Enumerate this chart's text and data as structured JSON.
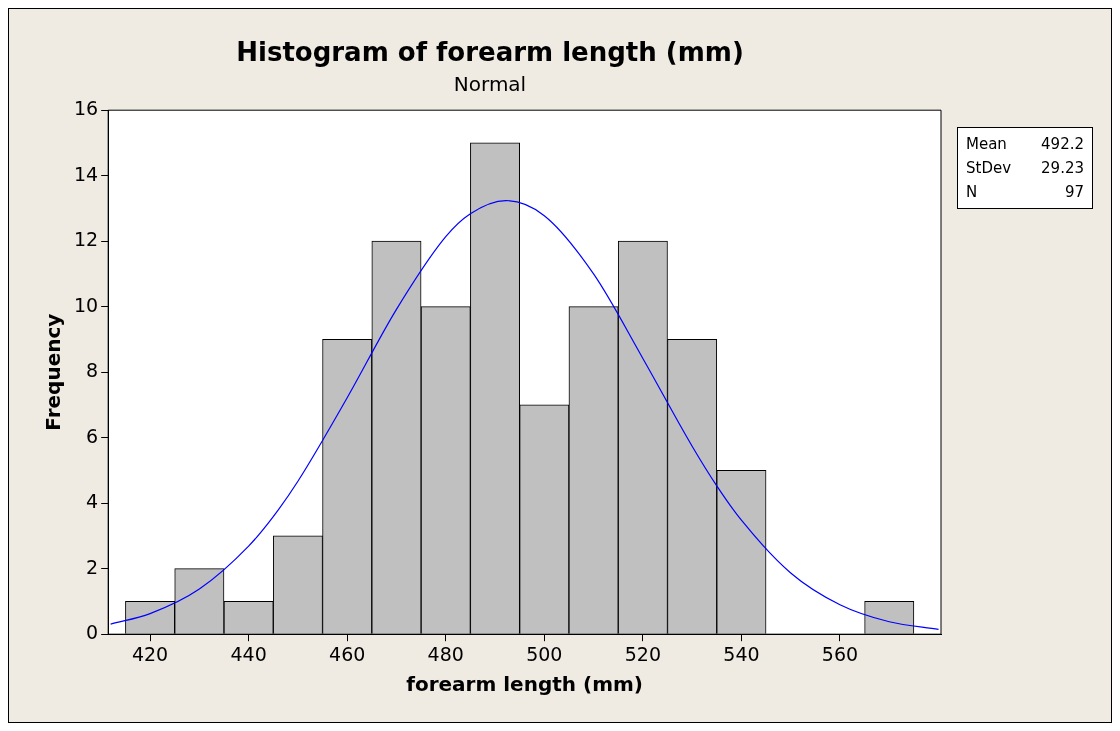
{
  "chart_data": {
    "type": "histogram",
    "title": "Histogram of forearm length (mm)",
    "subtitle": "Normal",
    "xlabel": "forearm length (mm)",
    "ylabel": "Frequency",
    "bins": [
      415,
      425,
      435,
      445,
      455,
      465,
      475,
      485,
      495,
      505,
      515,
      525,
      535,
      545,
      555,
      565,
      575
    ],
    "values": [
      1,
      2,
      1,
      3,
      9,
      12,
      10,
      15,
      7,
      10,
      12,
      9,
      5,
      0,
      0,
      1
    ],
    "color": "#c0c0c0",
    "series": [
      {
        "type": "line",
        "color": "#0000ff",
        "x": [
          412,
          420,
          430,
          440,
          445,
          450,
          460,
          470,
          480,
          485,
          492.2,
          500,
          510,
          520,
          530,
          535,
          540,
          550,
          560,
          570,
          580
        ],
        "values": [
          0.31,
          0.63,
          1.38,
          2.69,
          3.59,
          4.67,
          7.22,
          9.92,
          12.14,
          12.84,
          13.24,
          12.78,
          11.0,
          8.42,
          5.74,
          4.53,
          3.48,
          1.87,
          0.9,
          0.38,
          0.15
        ]
      }
    ],
    "xlim": [
      411.5,
      580.5
    ],
    "xticks": [
      420,
      440,
      460,
      480,
      500,
      520,
      540,
      560
    ],
    "ylim": [
      0,
      16
    ],
    "yticks": [
      0,
      2,
      4,
      6,
      8,
      10,
      12,
      14,
      16
    ],
    "grid": false,
    "legend": false,
    "marker": "none",
    "annotations": [
      "Mean 492.2",
      "StDev 29.23",
      "N 97"
    ]
  }
}
